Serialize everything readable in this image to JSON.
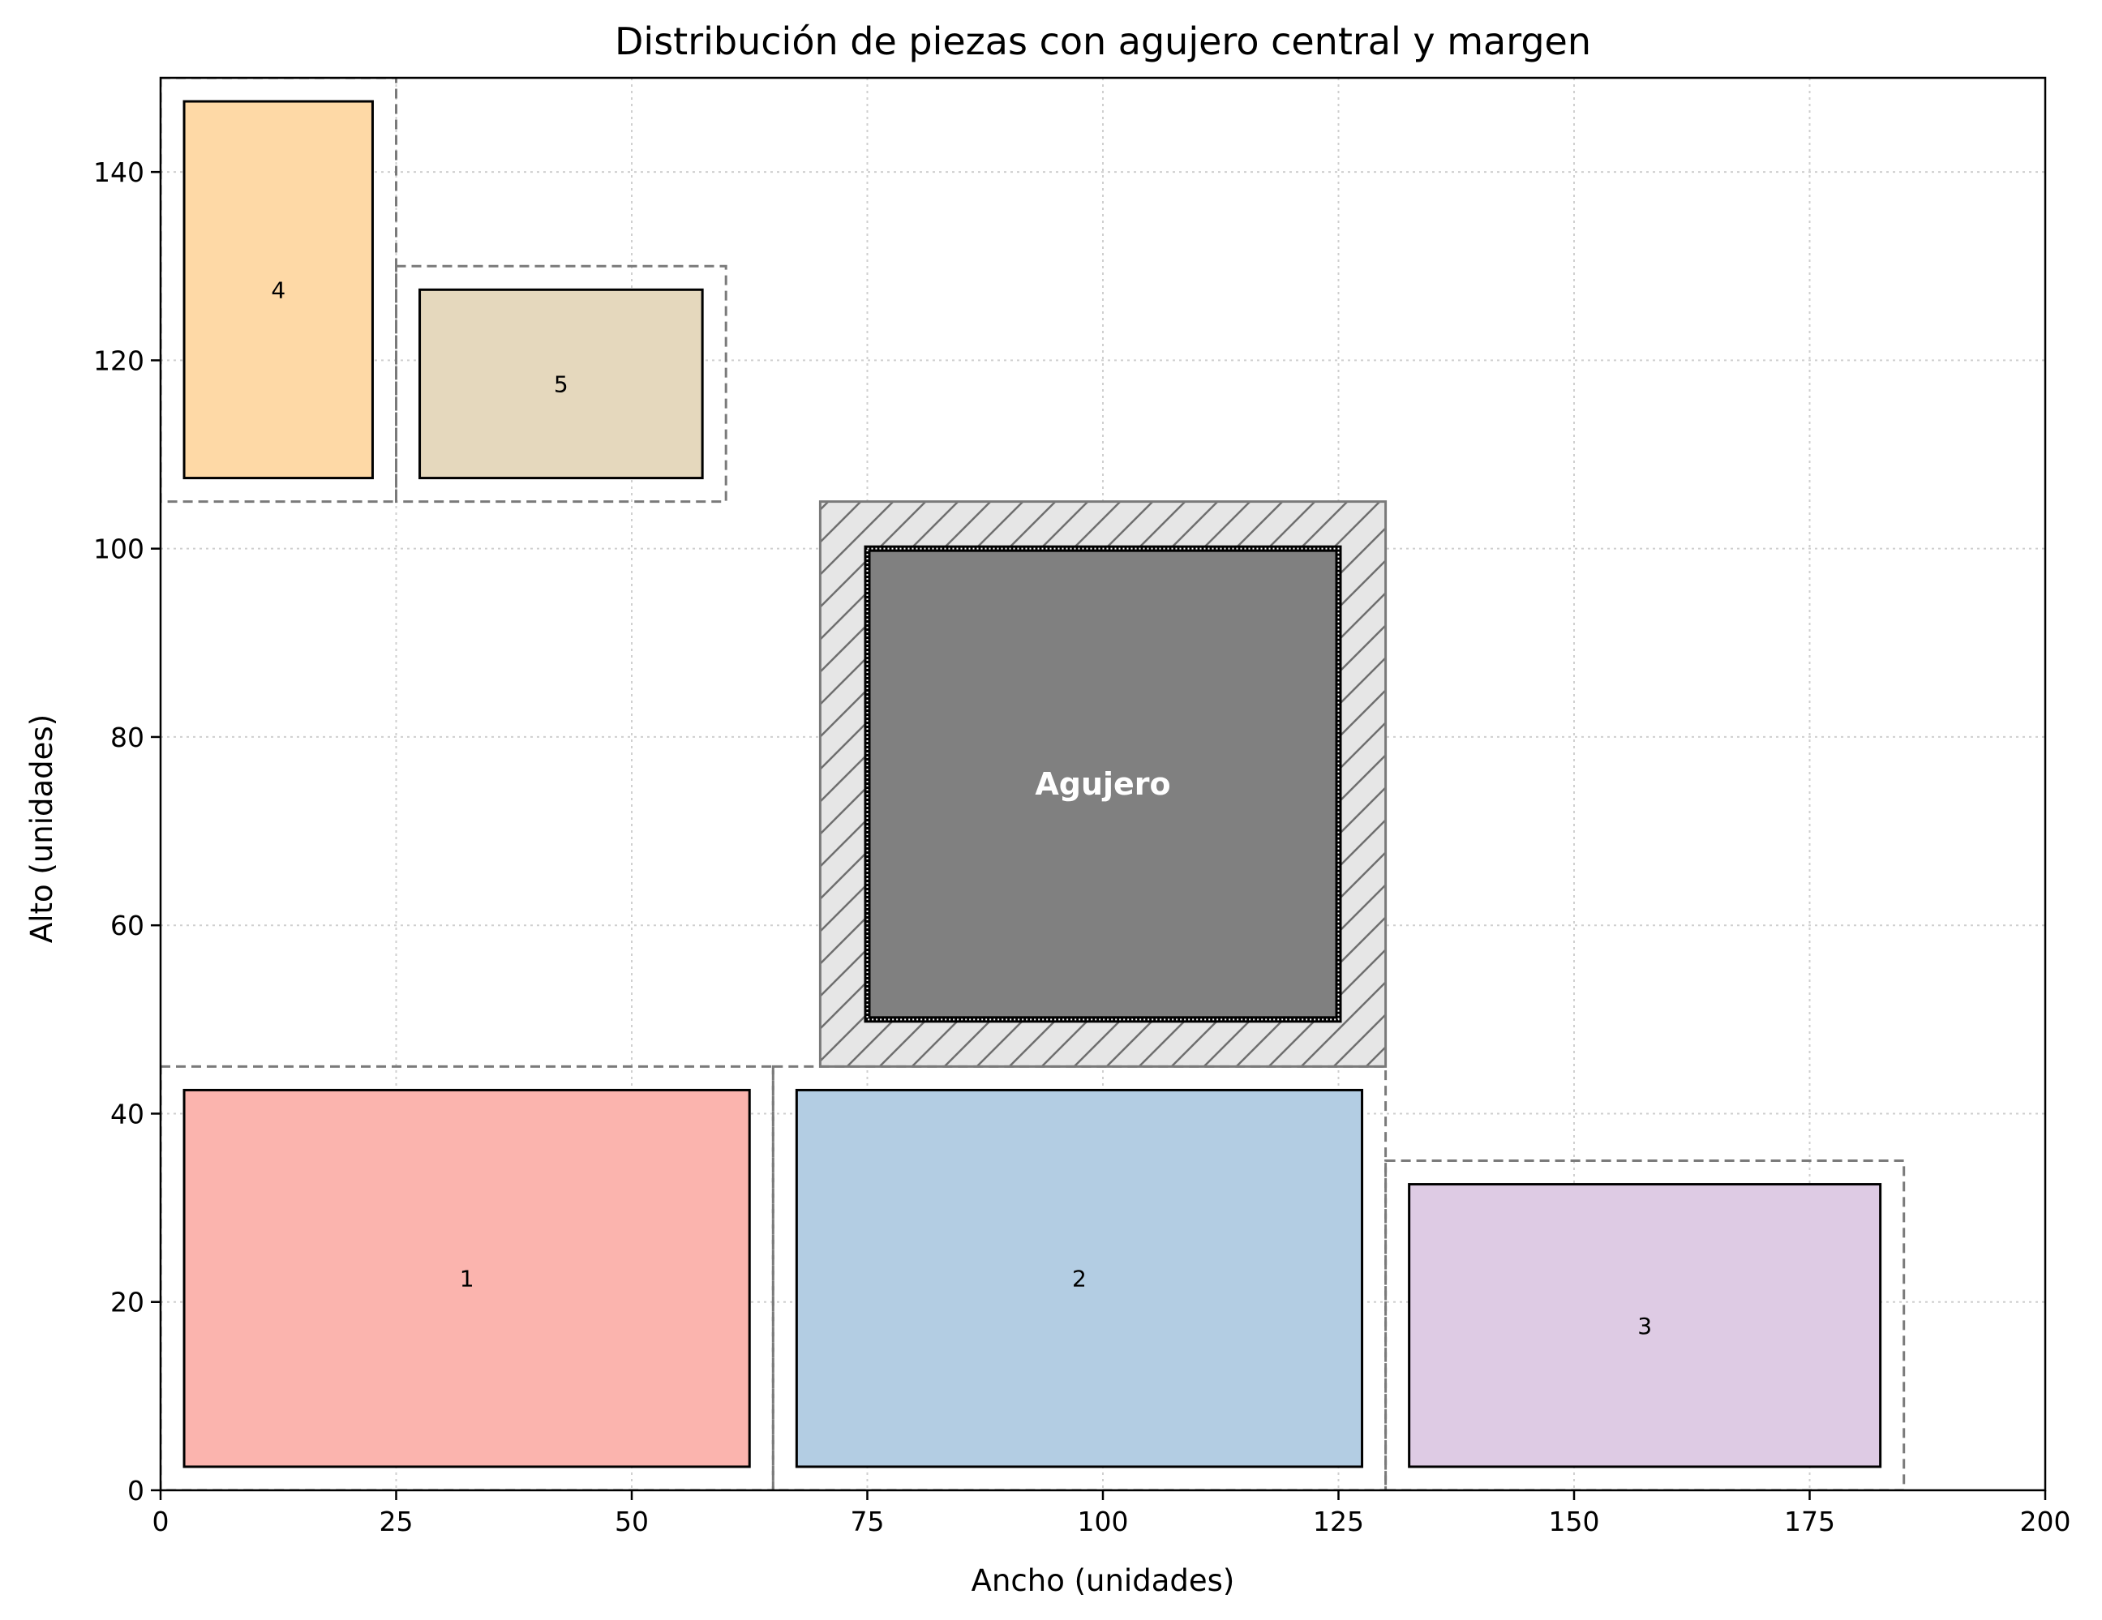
{
  "chart_data": {
    "type": "rectangle-layout",
    "title": "Distribución de piezas con agujero central y margen",
    "xlabel": "Ancho (unidades)",
    "ylabel": "Alto (unidades)",
    "xlim": [
      0,
      200
    ],
    "ylim": [
      0,
      150
    ],
    "xticks": [
      0,
      25,
      50,
      75,
      100,
      125,
      150,
      175,
      200
    ],
    "yticks": [
      0,
      20,
      40,
      60,
      80,
      100,
      120,
      140
    ],
    "grid": true,
    "margin": 2.5,
    "pieces": [
      {
        "label": "1",
        "x": 2.5,
        "y": 2.5,
        "w": 60,
        "h": 40,
        "color": "#fbb4ae"
      },
      {
        "label": "2",
        "x": 67.5,
        "y": 2.5,
        "w": 60,
        "h": 40,
        "color": "#b3cde3"
      },
      {
        "label": "3",
        "x": 132.5,
        "y": 2.5,
        "w": 50,
        "h": 30,
        "color": "#decbe4"
      },
      {
        "label": "4",
        "x": 2.5,
        "y": 107.5,
        "w": 20,
        "h": 40,
        "color": "#fed9a6"
      },
      {
        "label": "5",
        "x": 27.5,
        "y": 107.5,
        "w": 30,
        "h": 20,
        "color": "#e5d8bd"
      }
    ],
    "hole": {
      "label": "Agujero",
      "x": 75,
      "y": 50,
      "w": 50,
      "h": 50,
      "color": "#808080"
    },
    "hole_margin": {
      "x": 70,
      "y": 45,
      "w": 60,
      "h": 60,
      "color": "#e6e6e6",
      "hatch": "diagonal"
    },
    "bins": [
      {
        "x": 0,
        "y": 0,
        "w": 65,
        "h": 45
      },
      {
        "x": 65,
        "y": 0,
        "w": 65,
        "h": 45
      },
      {
        "x": 130,
        "y": 0,
        "w": 55,
        "h": 35
      },
      {
        "x": 0,
        "y": 105,
        "w": 25,
        "h": 45
      },
      {
        "x": 25,
        "y": 105,
        "w": 35,
        "h": 25
      }
    ]
  }
}
